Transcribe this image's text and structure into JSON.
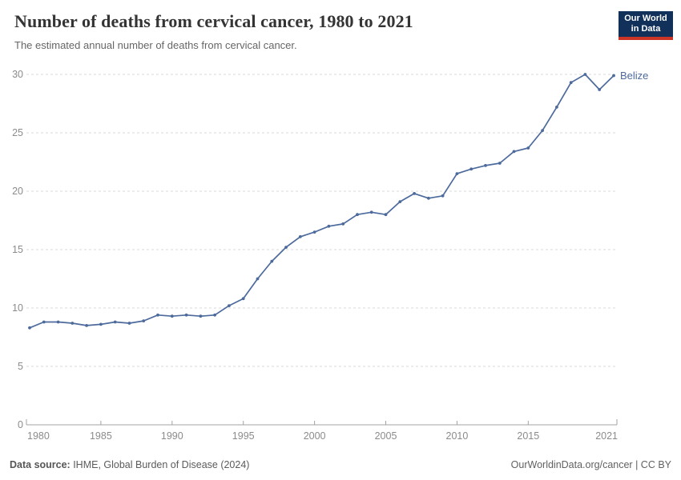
{
  "header": {
    "title": "Number of deaths from cervical cancer, 1980 to 2021",
    "subtitle": "The estimated annual number of deaths from cervical cancer."
  },
  "logo": {
    "line1": "Our World",
    "line2": "in Data",
    "bg_color": "#12315a",
    "accent_color": "#cc3425"
  },
  "footer": {
    "source_label": "Data source:",
    "source_text": " IHME, Global Burden of Disease (2024)",
    "link_text": "OurWorldinData.org/cancer",
    "separator": " | ",
    "license_text": "CC BY"
  },
  "chart_data": {
    "type": "line",
    "title": "Number of deaths from cervical cancer, 1980 to 2021",
    "subtitle": "The estimated annual number of deaths from cervical cancer.",
    "entity_label": "Belize",
    "x": [
      1980,
      1981,
      1982,
      1983,
      1984,
      1985,
      1986,
      1987,
      1988,
      1989,
      1990,
      1991,
      1992,
      1993,
      1994,
      1995,
      1996,
      1997,
      1998,
      1999,
      2000,
      2001,
      2002,
      2003,
      2004,
      2005,
      2006,
      2007,
      2008,
      2009,
      2010,
      2011,
      2012,
      2013,
      2014,
      2015,
      2016,
      2017,
      2018,
      2019,
      2020,
      2021
    ],
    "series": [
      {
        "name": "Belize",
        "color": "#4C6A9C",
        "values": [
          8.3,
          8.8,
          8.8,
          8.7,
          8.5,
          8.6,
          8.8,
          8.7,
          8.9,
          9.4,
          9.3,
          9.4,
          9.3,
          9.4,
          10.2,
          10.8,
          12.5,
          14.0,
          15.2,
          16.1,
          16.5,
          17.0,
          17.2,
          18.0,
          18.2,
          18.0,
          19.1,
          19.8,
          19.4,
          19.6,
          21.5,
          21.9,
          22.2,
          22.4,
          23.4,
          23.7,
          25.2,
          27.2,
          29.3,
          30.0,
          28.7,
          29.9
        ]
      }
    ],
    "x_ticks": [
      1980,
      1985,
      1990,
      1995,
      2000,
      2005,
      2010,
      2015,
      2021
    ],
    "y_ticks": [
      0,
      5,
      10,
      15,
      20,
      25,
      30
    ],
    "xlim": [
      1980,
      2021
    ],
    "ylim": [
      0,
      30
    ],
    "grid": "horizontal-dashed",
    "legend_position": "end-of-line-label",
    "xlabel": "",
    "ylabel": ""
  }
}
